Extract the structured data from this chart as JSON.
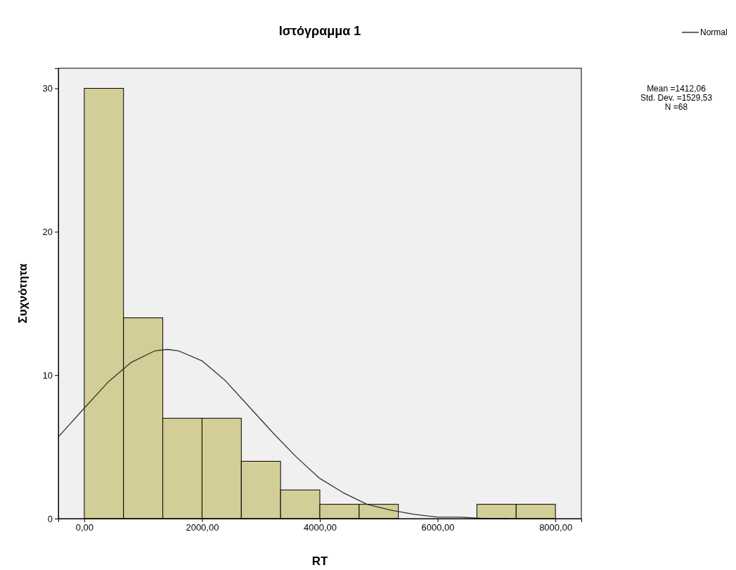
{
  "chart_data": {
    "type": "histogram",
    "title": "Ιστόγραμμα 1",
    "xlabel": "RT",
    "ylabel": "Συχνότητα",
    "bins": [
      0,
      666.67,
      1333.33,
      2000,
      2666.67,
      3333.33,
      4000,
      4666.67,
      5333.33,
      6000,
      6666.67,
      7333.33,
      8000
    ],
    "values": [
      30,
      14,
      7,
      7,
      4,
      2,
      1,
      1,
      0,
      0,
      1,
      1
    ],
    "color": "#d3ce97",
    "xlim": [
      -440,
      8440
    ],
    "xticks": [
      {
        "value": 0,
        "label": "0,00"
      },
      {
        "value": 2000,
        "label": "2000,00"
      },
      {
        "value": 4000,
        "label": "4000,00"
      },
      {
        "value": 6000,
        "label": "6000,00"
      },
      {
        "value": 8000,
        "label": "8000,00"
      }
    ],
    "ylim": [
      0,
      31.4
    ],
    "yticks": [
      0,
      10,
      20,
      30
    ],
    "series": [
      {
        "type": "line",
        "name": "Normal",
        "color": "#333333",
        "x": [
          -440,
          0,
          400,
          800,
          1200,
          1412,
          1600,
          2000,
          2400,
          2800,
          3200,
          3600,
          4000,
          4400,
          4800,
          5200,
          5600,
          6000,
          6400,
          6800,
          7200
        ],
        "values": [
          5.7,
          7.7,
          9.5,
          10.9,
          11.7,
          11.8,
          11.7,
          11.0,
          9.6,
          7.8,
          6.0,
          4.3,
          2.8,
          1.8,
          1.0,
          0.6,
          0.3,
          0.1,
          0.1,
          0.0,
          0.0
        ]
      }
    ],
    "legend": "top right",
    "annotations": [
      "Mean =1412,06",
      "Std. Dev. =1529,53",
      "N =68"
    ]
  }
}
